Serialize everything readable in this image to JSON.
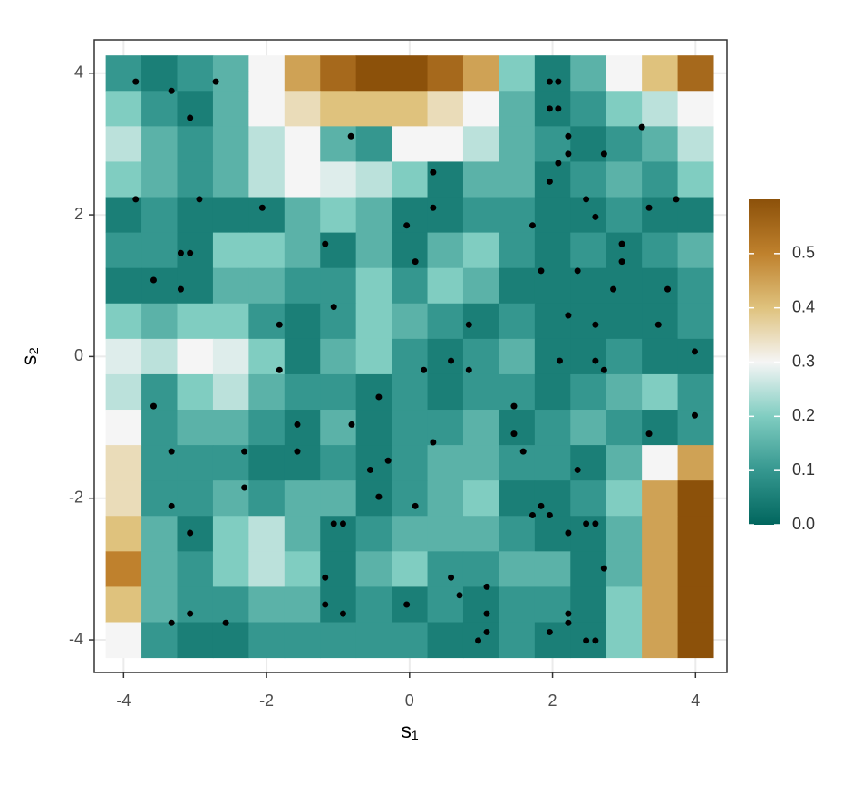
{
  "chart_data": {
    "type": "heatmap",
    "x": [
      -4,
      -3.5,
      -3,
      -2.5,
      -2,
      -1.5,
      -1,
      -0.5,
      0,
      0.5,
      1,
      1.5,
      2,
      2.5,
      3,
      3.5,
      4
    ],
    "y": [
      4,
      3.5,
      3,
      2.5,
      2,
      1.5,
      1,
      0.5,
      0,
      -0.5,
      -1,
      -1.5,
      -2,
      -2.5,
      -3,
      -3.5,
      -4
    ],
    "z": [
      [
        0.1,
        0.05,
        0.1,
        0.15,
        0.3,
        0.45,
        0.55,
        0.6,
        0.6,
        0.55,
        0.45,
        0.2,
        0.05,
        0.15,
        0.3,
        0.4,
        0.55
      ],
      [
        0.2,
        0.1,
        0.05,
        0.15,
        0.3,
        0.35,
        0.4,
        0.4,
        0.4,
        0.35,
        0.3,
        0.15,
        0.05,
        0.1,
        0.2,
        0.25,
        0.3
      ],
      [
        0.25,
        0.15,
        0.1,
        0.15,
        0.25,
        0.3,
        0.15,
        0.1,
        0.3,
        0.3,
        0.25,
        0.15,
        0.1,
        0.05,
        0.1,
        0.15,
        0.25
      ],
      [
        0.2,
        0.15,
        0.1,
        0.15,
        0.25,
        0.3,
        0.28,
        0.25,
        0.2,
        0.05,
        0.15,
        0.15,
        0.05,
        0.1,
        0.15,
        0.1,
        0.2
      ],
      [
        0.05,
        0.1,
        0.05,
        0.05,
        0.05,
        0.15,
        0.2,
        0.15,
        0.05,
        0.05,
        0.1,
        0.1,
        0.05,
        0.05,
        0.1,
        0.05,
        0.05
      ],
      [
        0.1,
        0.1,
        0.05,
        0.2,
        0.2,
        0.15,
        0.05,
        0.15,
        0.05,
        0.15,
        0.2,
        0.1,
        0.05,
        0.1,
        0.05,
        0.1,
        0.15
      ],
      [
        0.05,
        0.05,
        0.05,
        0.15,
        0.15,
        0.1,
        0.1,
        0.2,
        0.1,
        0.2,
        0.15,
        0.05,
        0.05,
        0.05,
        0.05,
        0.05,
        0.1
      ],
      [
        0.2,
        0.15,
        0.2,
        0.2,
        0.1,
        0.05,
        0.1,
        0.2,
        0.15,
        0.1,
        0.05,
        0.1,
        0.05,
        0.05,
        0.05,
        0.05,
        0.1
      ],
      [
        0.28,
        0.25,
        0.3,
        0.28,
        0.2,
        0.05,
        0.15,
        0.2,
        0.1,
        0.05,
        0.1,
        0.15,
        0.05,
        0.05,
        0.1,
        0.05,
        0.05
      ],
      [
        0.25,
        0.1,
        0.2,
        0.25,
        0.15,
        0.1,
        0.1,
        0.05,
        0.1,
        0.05,
        0.1,
        0.1,
        0.05,
        0.1,
        0.15,
        0.2,
        0.1
      ],
      [
        0.3,
        0.1,
        0.15,
        0.15,
        0.1,
        0.05,
        0.15,
        0.05,
        0.1,
        0.1,
        0.15,
        0.05,
        0.1,
        0.15,
        0.1,
        0.05,
        0.1
      ],
      [
        0.35,
        0.1,
        0.1,
        0.1,
        0.05,
        0.05,
        0.1,
        0.05,
        0.1,
        0.15,
        0.15,
        0.1,
        0.1,
        0.05,
        0.15,
        0.3,
        0.45
      ],
      [
        0.35,
        0.1,
        0.1,
        0.15,
        0.1,
        0.15,
        0.15,
        0.05,
        0.1,
        0.15,
        0.2,
        0.05,
        0.05,
        0.1,
        0.2,
        0.45,
        0.6
      ],
      [
        0.4,
        0.15,
        0.05,
        0.2,
        0.25,
        0.15,
        0.05,
        0.1,
        0.15,
        0.15,
        0.15,
        0.1,
        0.05,
        0.05,
        0.15,
        0.45,
        0.6
      ],
      [
        0.5,
        0.15,
        0.1,
        0.2,
        0.25,
        0.2,
        0.05,
        0.15,
        0.2,
        0.1,
        0.1,
        0.15,
        0.15,
        0.05,
        0.15,
        0.45,
        0.6
      ],
      [
        0.4,
        0.15,
        0.1,
        0.1,
        0.15,
        0.15,
        0.05,
        0.1,
        0.05,
        0.1,
        0.05,
        0.1,
        0.1,
        0.05,
        0.2,
        0.45,
        0.6
      ],
      [
        0.3,
        0.1,
        0.05,
        0.05,
        0.1,
        0.1,
        0.1,
        0.1,
        0.1,
        0.05,
        0.05,
        0.1,
        0.05,
        0.05,
        0.2,
        0.45,
        0.6
      ]
    ],
    "points": {
      "color": "#000000",
      "x": [
        -3.83,
        -3.33,
        -2.71,
        -3.07,
        -0.82,
        1.96,
        2.08,
        1.96,
        2.08,
        3.25,
        2.22,
        2.22,
        2.72,
        2.08,
        0.33,
        1.96,
        -3.83,
        -2.94,
        -2.06,
        0.33,
        2.47,
        2.6,
        3.35,
        3.73,
        -0.04,
        1.72,
        -1.18,
        2.97,
        -3.2,
        -3.07,
        0.08,
        2.97,
        1.84,
        2.35,
        -3.58,
        -3.2,
        2.85,
        3.61,
        -1.06,
        2.22,
        -1.82,
        0.83,
        2.6,
        3.48,
        3.99,
        0.58,
        2.1,
        2.6,
        -1.82,
        0.2,
        0.83,
        2.72,
        -0.43,
        -3.58,
        1.46,
        -1.57,
        -0.81,
        3.99,
        1.46,
        3.35,
        0.33,
        -3.33,
        -2.31,
        -1.57,
        1.59,
        -0.3,
        -0.55,
        2.35,
        -2.31,
        -0.43,
        -3.33,
        0.08,
        1.84,
        1.72,
        1.96,
        -1.06,
        -0.93,
        2.47,
        2.6,
        -3.07,
        2.22,
        2.72,
        -1.18,
        0.58,
        1.08,
        0.7,
        -1.18,
        -0.04,
        -0.93,
        -3.07,
        1.08,
        2.22,
        -3.33,
        -2.57,
        2.22,
        1.08,
        1.96,
        0.96,
        2.47,
        2.6
      ],
      "y": [
        3.88,
        3.75,
        3.88,
        3.37,
        3.11,
        3.88,
        3.88,
        3.5,
        3.5,
        3.24,
        3.11,
        2.86,
        2.86,
        2.73,
        2.6,
        2.47,
        2.22,
        2.22,
        2.1,
        2.1,
        2.22,
        1.97,
        2.1,
        2.22,
        1.85,
        1.85,
        1.59,
        1.59,
        1.46,
        1.46,
        1.34,
        1.34,
        1.21,
        1.21,
        1.08,
        0.95,
        0.95,
        0.95,
        0.7,
        0.58,
        0.45,
        0.45,
        0.45,
        0.45,
        0.07,
        -0.06,
        -0.06,
        -0.06,
        -0.19,
        -0.19,
        -0.19,
        -0.19,
        -0.57,
        -0.7,
        -0.7,
        -0.96,
        -0.96,
        -0.83,
        -1.09,
        -1.09,
        -1.21,
        -1.34,
        -1.34,
        -1.34,
        -1.34,
        -1.47,
        -1.6,
        -1.6,
        -1.85,
        -1.98,
        -2.11,
        -2.11,
        -2.11,
        -2.24,
        -2.24,
        -2.36,
        -2.36,
        -2.36,
        -2.36,
        -2.49,
        -2.49,
        -2.99,
        -3.12,
        -3.12,
        -3.25,
        -3.37,
        -3.5,
        -3.5,
        -3.63,
        -3.63,
        -3.63,
        -3.63,
        -3.76,
        -3.76,
        -3.76,
        -3.89,
        -3.89,
        -4.01,
        -4.01,
        -4.01
      ]
    },
    "xlabel": "s₁",
    "ylabel": "s₂",
    "xlim": [
      -4.41,
      4.44
    ],
    "ylim": [
      -4.46,
      4.47
    ],
    "xticks": [
      -4,
      -2,
      0,
      2,
      4
    ],
    "yticks": [
      -4,
      -2,
      0,
      2,
      4
    ],
    "grid": true,
    "colorbar": {
      "lim": [
        0,
        0.6
      ],
      "ticks": [
        {
          "value": 0,
          "label": "0.0"
        },
        0.1,
        0.2,
        0.3,
        0.4,
        0.5
      ],
      "colors": [
        "#01665e",
        "#35978f",
        "#80cdc1",
        "#f5f5f5",
        "#dfc27d",
        "#bf812d",
        "#8c510a"
      ]
    }
  }
}
